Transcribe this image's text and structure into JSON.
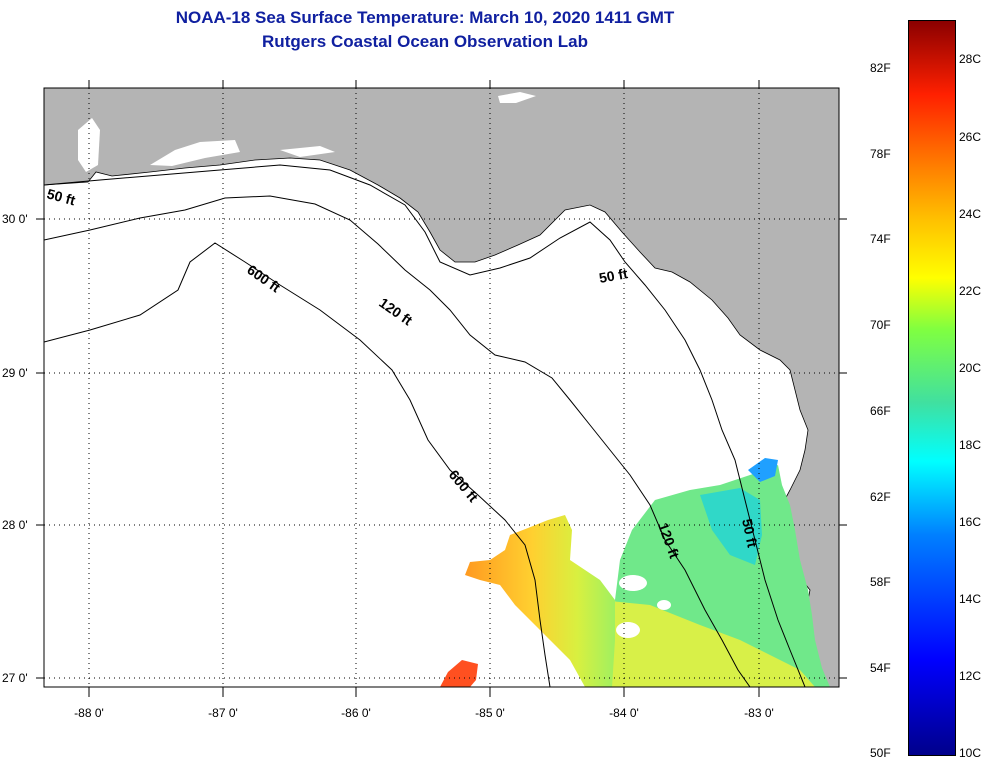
{
  "header": {
    "title_line1": "NOAA-18 Sea Surface Temperature:  March 10, 2020 1411 GMT",
    "title_line2": "Rutgers Coastal Ocean Observation Lab"
  },
  "map": {
    "lon_labels": [
      "-88 0'",
      "-87 0'",
      "-86 0'",
      "-85 0'",
      "-84 0'",
      "-83 0'"
    ],
    "lat_labels": [
      "30 0'",
      "29 0'",
      "28 0'",
      "27 0'"
    ],
    "lon_range": [
      -88.33,
      -82.5
    ],
    "lat_range": [
      26.95,
      30.9
    ],
    "contour_labels": [
      "50 ft",
      "600 ft",
      "120 ft",
      "50 ft",
      "600 ft",
      "120 ft",
      "50 ft"
    ],
    "colors": {
      "land": "#b4b4b4",
      "ocean_no_data": "#ffffff",
      "grid": "#000000"
    }
  },
  "colorbar": {
    "fahrenheit_labels": [
      "82F",
      "78F",
      "74F",
      "70F",
      "66F",
      "62F",
      "58F",
      "54F",
      "50F"
    ],
    "celsius_labels": [
      "28C",
      "26C",
      "24C",
      "22C",
      "20C",
      "18C",
      "16C",
      "14C",
      "12C",
      "10C"
    ],
    "range_c": [
      10,
      29
    ]
  }
}
